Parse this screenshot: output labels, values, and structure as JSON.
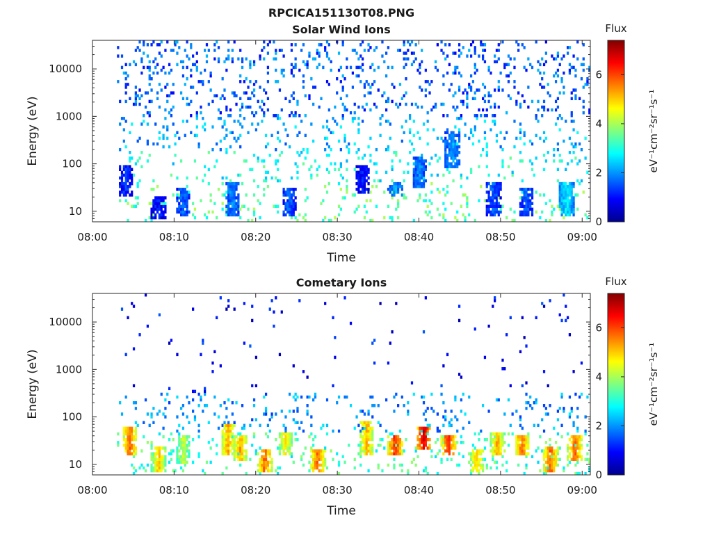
{
  "figure": {
    "title": "RPCICA151130T08.PNG"
  },
  "colorscale": {
    "stops": [
      "#00008f",
      "#0000ff",
      "#0080ff",
      "#00ffff",
      "#80ff80",
      "#ffff00",
      "#ff8000",
      "#ff0000",
      "#800000"
    ]
  },
  "chart_data": [
    {
      "type": "heatmap",
      "title": "Solar Wind Ions",
      "xlabel": "Time",
      "ylabel": "Energy (eV)",
      "x_range": [
        "08:00",
        "09:01"
      ],
      "x_ticks": [
        "08:00",
        "08:10",
        "08:20",
        "08:30",
        "08:40",
        "08:50",
        "09:00"
      ],
      "y_scale": "log",
      "y_range": [
        6,
        40000
      ],
      "y_ticks": [
        "10",
        "100",
        "1000",
        "10000"
      ],
      "data_time_range": [
        "08:03",
        "09:01"
      ],
      "colorbar": {
        "title": "Flux",
        "label": "eV⁻¹cm⁻²sr⁻¹s⁻¹",
        "range": [
          0,
          7.4
        ],
        "ticks": [
          "0",
          "2",
          "4",
          "6"
        ]
      },
      "features": [
        {
          "time": "08:04",
          "energy_range": [
            20,
            90
          ],
          "level": 1.2
        },
        {
          "time": "08:08",
          "energy_range": [
            7,
            20
          ],
          "level": 1.0
        },
        {
          "time": "08:11",
          "energy_range": [
            8,
            30
          ],
          "level": 1.5
        },
        {
          "time": "08:17",
          "energy_range": [
            8,
            40
          ],
          "level": 1.8
        },
        {
          "time": "08:24",
          "energy_range": [
            8,
            30
          ],
          "level": 1.5
        },
        {
          "time": "08:33",
          "energy_range": [
            25,
            90
          ],
          "level": 1.0
        },
        {
          "time": "08:37",
          "energy_range": [
            20,
            40
          ],
          "level": 2.0
        },
        {
          "time": "08:40",
          "energy_range": [
            30,
            150
          ],
          "level": 1.8
        },
        {
          "time": "08:44",
          "energy_range": [
            80,
            500
          ],
          "level": 2.0
        },
        {
          "time": "08:49",
          "energy_range": [
            8,
            40
          ],
          "level": 1.5
        },
        {
          "time": "08:53",
          "energy_range": [
            8,
            30
          ],
          "level": 1.5
        },
        {
          "time": "08:58",
          "energy_range": [
            8,
            40
          ],
          "level": 2.5
        }
      ]
    },
    {
      "type": "heatmap",
      "title": "Cometary Ions",
      "xlabel": "Time",
      "ylabel": "Energy (eV)",
      "x_range": [
        "08:00",
        "09:01"
      ],
      "x_ticks": [
        "08:00",
        "08:10",
        "08:20",
        "08:30",
        "08:40",
        "08:50",
        "09:00"
      ],
      "y_scale": "log",
      "y_range": [
        6,
        40000
      ],
      "y_ticks": [
        "10",
        "100",
        "1000",
        "10000"
      ],
      "data_time_range": [
        "08:03",
        "09:01"
      ],
      "colorbar": {
        "title": "Flux",
        "label": "eV⁻¹cm⁻²sr⁻¹s⁻¹",
        "range": [
          0,
          7.4
        ],
        "ticks": [
          "0",
          "2",
          "4",
          "6"
        ]
      },
      "features": [
        {
          "time": "08:04.5",
          "energy_range": [
            15,
            60
          ],
          "level": 5.5
        },
        {
          "time": "08:08",
          "energy_range": [
            7,
            25
          ],
          "level": 4.8
        },
        {
          "time": "08:11",
          "energy_range": [
            10,
            40
          ],
          "level": 4.0
        },
        {
          "time": "08:16.5",
          "energy_range": [
            15,
            70
          ],
          "level": 5.0
        },
        {
          "time": "08:18",
          "energy_range": [
            12,
            40
          ],
          "level": 5.0
        },
        {
          "time": "08:21",
          "energy_range": [
            7,
            20
          ],
          "level": 5.5
        },
        {
          "time": "08:23.5",
          "energy_range": [
            15,
            50
          ],
          "level": 4.5
        },
        {
          "time": "08:27.5",
          "energy_range": [
            7,
            20
          ],
          "level": 5.5
        },
        {
          "time": "08:33.5",
          "energy_range": [
            15,
            80
          ],
          "level": 5.0
        },
        {
          "time": "08:37",
          "energy_range": [
            15,
            40
          ],
          "level": 6.0
        },
        {
          "time": "08:40.5",
          "energy_range": [
            20,
            60
          ],
          "level": 6.5
        },
        {
          "time": "08:43.5",
          "energy_range": [
            15,
            40
          ],
          "level": 6.0
        },
        {
          "time": "08:47",
          "energy_range": [
            7,
            20
          ],
          "level": 4.8
        },
        {
          "time": "08:49.5",
          "energy_range": [
            15,
            50
          ],
          "level": 5.0
        },
        {
          "time": "08:52.5",
          "energy_range": [
            15,
            40
          ],
          "level": 5.5
        },
        {
          "time": "08:56",
          "energy_range": [
            7,
            25
          ],
          "level": 5.5
        },
        {
          "time": "08:59",
          "energy_range": [
            12,
            40
          ],
          "level": 5.5
        }
      ]
    }
  ]
}
